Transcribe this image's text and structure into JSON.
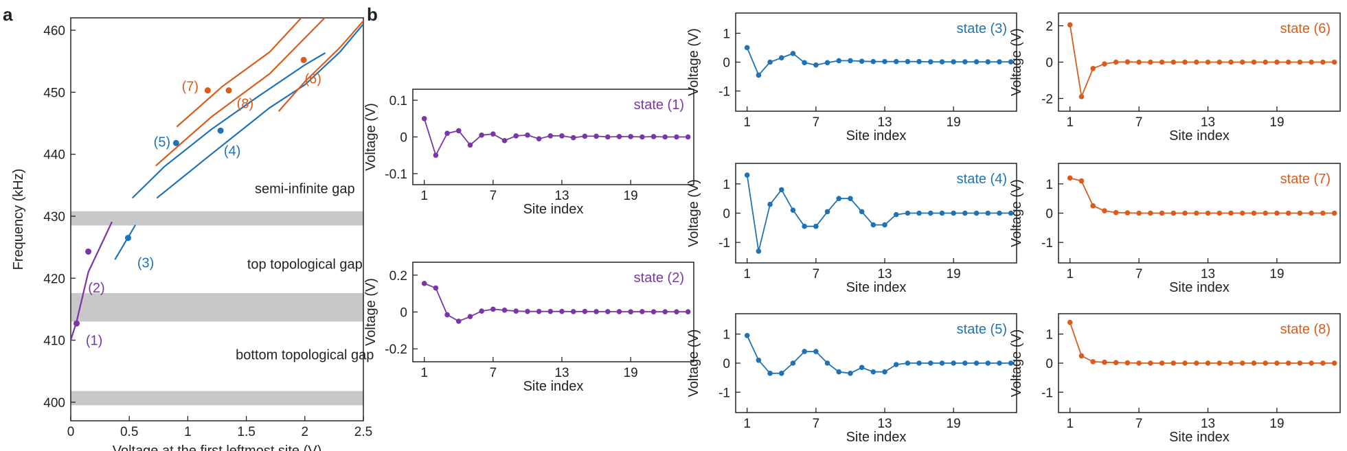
{
  "colors": {
    "purple": "#7a35a6",
    "blue": "#1f73b5",
    "orange": "#d95c1c",
    "gap": "#c8c8c8",
    "axis": "#222222"
  },
  "panel_a": {
    "letter": "a"
  },
  "panel_b": {
    "letter": "b"
  },
  "chart_data": [
    {
      "id": "a",
      "type": "line",
      "xlabel": "Voltage at the first leftmost site (V)",
      "ylabel": "Frequency (kHz)",
      "xlim": [
        0,
        2.5
      ],
      "ylim": [
        397,
        462
      ],
      "xticks": [
        "0",
        "0.5",
        "1",
        "1.5",
        "2",
        "2.5"
      ],
      "xtick_values": [
        0,
        0.5,
        1,
        1.5,
        2,
        2.5
      ],
      "yticks": [
        "400",
        "410",
        "420",
        "430",
        "440",
        "450",
        "460"
      ],
      "ytick_values": [
        400,
        410,
        420,
        430,
        440,
        450,
        460
      ],
      "gaps": [
        [
          399.5,
          401.8
        ],
        [
          413,
          417.6
        ],
        [
          428.5,
          430.8
        ]
      ],
      "gap_labels": [
        {
          "text": "semi-infinite gap",
          "x": 2.0,
          "y": 434.5
        },
        {
          "text": "top topological gap",
          "x": 2.0,
          "y": 422.3
        },
        {
          "text": "bottom topological gap",
          "x": 2.0,
          "y": 407.7
        }
      ],
      "series": [
        {
          "color": "purple",
          "points": [
            [
              0,
              410
            ],
            [
              0.05,
              413
            ],
            [
              0.15,
              421
            ],
            [
              0.35,
              429
            ]
          ]
        },
        {
          "color": "blue",
          "points": [
            [
              0.38,
              423.1
            ],
            [
              0.55,
              428.5
            ]
          ]
        },
        {
          "color": "blue",
          "points": [
            [
              0.53,
              433
            ],
            [
              0.8,
              438
            ],
            [
              1.2,
              444
            ],
            [
              1.6,
              449.3
            ],
            [
              2.0,
              454.4
            ],
            [
              2.17,
              456.3
            ]
          ]
        },
        {
          "color": "blue",
          "points": [
            [
              0.74,
              433
            ],
            [
              1.2,
              440
            ],
            [
              1.7,
              447.5
            ],
            [
              2.0,
              451.2
            ],
            [
              2.3,
              456.5
            ],
            [
              2.5,
              461
            ]
          ]
        },
        {
          "color": "orange",
          "points": [
            [
              0.91,
              444.5
            ],
            [
              1.3,
              451
            ],
            [
              1.7,
              456.5
            ],
            [
              1.97,
              462
            ]
          ]
        },
        {
          "color": "orange",
          "points": [
            [
              0.73,
              438.2
            ],
            [
              1.2,
              446
            ],
            [
              1.7,
              453
            ],
            [
              2.17,
              462
            ]
          ]
        },
        {
          "color": "orange",
          "points": [
            [
              1.78,
              447
            ],
            [
              2.0,
              451.7
            ],
            [
              2.3,
              457.2
            ],
            [
              2.5,
              461.5
            ]
          ]
        }
      ],
      "markers": [
        {
          "label": "(1)",
          "color": "purple",
          "x": 0.05,
          "y": 412.7,
          "lx": 0.2,
          "ly": 410
        },
        {
          "label": "(2)",
          "color": "purple",
          "x": 0.15,
          "y": 424.3,
          "lx": 0.22,
          "ly": 418.5
        },
        {
          "label": "(3)",
          "color": "blue",
          "x": 0.49,
          "y": 426.5,
          "lx": 0.64,
          "ly": 422.5
        },
        {
          "label": "(4)",
          "color": "blue",
          "x": 1.28,
          "y": 443.8,
          "lx": 1.38,
          "ly": 440.6
        },
        {
          "label": "(5)",
          "color": "blue",
          "x": 0.9,
          "y": 441.8,
          "lx": 0.78,
          "ly": 442
        },
        {
          "label": "(6)",
          "color": "orange",
          "x": 1.99,
          "y": 455.2,
          "lx": 2.07,
          "ly": 452.2
        },
        {
          "label": "(7)",
          "color": "orange",
          "x": 1.17,
          "y": 450.3,
          "lx": 1.02,
          "ly": 451
        },
        {
          "label": "(8)",
          "color": "orange",
          "x": 1.35,
          "y": 450.3,
          "lx": 1.49,
          "ly": 448.2
        }
      ]
    },
    {
      "id": "s1",
      "type": "line",
      "state": "state (1)",
      "color": "purple",
      "xlabel": "Site index",
      "ylabel": "Voltage (V)",
      "xlim": [
        0,
        24.5
      ],
      "ylim": [
        -0.13,
        0.13
      ],
      "xticks": [
        "1",
        "7",
        "13",
        "19"
      ],
      "xtick_values": [
        1,
        7,
        13,
        19
      ],
      "yticks": [
        "-0.1",
        "0",
        "0.1"
      ],
      "ytick_values": [
        -0.1,
        0,
        0.1
      ],
      "y": [
        0.05,
        -0.05,
        0.01,
        0.017,
        -0.022,
        0.005,
        0.008,
        -0.01,
        0.003,
        0.005,
        -0.005,
        0.003,
        0.003,
        -0.002,
        0.002,
        0.002,
        0,
        0.001,
        0.001,
        0,
        0.001,
        0,
        0,
        0
      ]
    },
    {
      "id": "s2",
      "type": "line",
      "state": "state (2)",
      "color": "purple",
      "xlabel": "Site index",
      "ylabel": "Voltage (V)",
      "xlim": [
        0,
        24.5
      ],
      "ylim": [
        -0.27,
        0.27
      ],
      "xticks": [
        "1",
        "7",
        "13",
        "19"
      ],
      "xtick_values": [
        1,
        7,
        13,
        19
      ],
      "yticks": [
        "-0.2",
        "0",
        "0.2"
      ],
      "ytick_values": [
        -0.2,
        0,
        0.2
      ],
      "y": [
        0.155,
        0.13,
        -0.015,
        -0.05,
        -0.025,
        0.005,
        0.015,
        0.01,
        0.005,
        0.003,
        0.003,
        0.003,
        0.003,
        0.002,
        0.003,
        0.002,
        0.002,
        0.002,
        0.001,
        0.002,
        0.001,
        0.001,
        0.001,
        0.001
      ]
    },
    {
      "id": "s3",
      "type": "line",
      "state": "state (3)",
      "color": "blue",
      "xlabel": "Site index",
      "ylabel": "Voltage (V)",
      "xlim": [
        0,
        24.5
      ],
      "ylim": [
        -1.7,
        1.7
      ],
      "xticks": [
        "1",
        "7",
        "13",
        "19"
      ],
      "xtick_values": [
        1,
        7,
        13,
        19
      ],
      "yticks": [
        "-1",
        "0",
        "1"
      ],
      "ytick_values": [
        -1,
        0,
        1
      ],
      "y": [
        0.5,
        -0.45,
        0.0,
        0.15,
        0.3,
        -0.02,
        -0.1,
        -0.02,
        0.05,
        0.05,
        0.03,
        0.02,
        0.02,
        0.02,
        0.02,
        0.02,
        0.01,
        0.01,
        0.01,
        0.01,
        0.01,
        0.01,
        0.01,
        0.01
      ]
    },
    {
      "id": "s6",
      "type": "line",
      "state": "state (6)",
      "color": "orange",
      "xlabel": "Site index",
      "ylabel": "Voltage (V)",
      "xlim": [
        0,
        24.5
      ],
      "ylim": [
        -2.7,
        2.7
      ],
      "xticks": [
        "1",
        "7",
        "13",
        "19"
      ],
      "xtick_values": [
        1,
        7,
        13,
        19
      ],
      "yticks": [
        "-2",
        "0",
        "2"
      ],
      "ytick_values": [
        -2,
        0,
        2
      ],
      "y": [
        2.05,
        -1.9,
        -0.35,
        -0.1,
        0.0,
        0.01,
        0,
        0,
        0,
        0,
        0,
        0,
        0,
        0,
        0,
        0,
        0,
        0,
        0,
        0,
        0,
        0,
        0,
        0
      ]
    },
    {
      "id": "s4",
      "type": "line",
      "state": "state (4)",
      "color": "blue",
      "xlabel": "Site index",
      "ylabel": "Voltage (V)",
      "xlim": [
        0,
        24.5
      ],
      "ylim": [
        -1.7,
        1.7
      ],
      "xticks": [
        "1",
        "7",
        "13",
        "19"
      ],
      "xtick_values": [
        1,
        7,
        13,
        19
      ],
      "yticks": [
        "-1",
        "0",
        "1"
      ],
      "ytick_values": [
        -1,
        0,
        1
      ],
      "y": [
        1.3,
        -1.3,
        0.3,
        0.8,
        0.1,
        -0.45,
        -0.45,
        0.05,
        0.5,
        0.5,
        0.05,
        -0.4,
        -0.4,
        -0.05,
        0.0,
        0.0,
        0.0,
        0.0,
        0.0,
        0.0,
        0.0,
        0.0,
        0.0,
        0.0
      ]
    },
    {
      "id": "s7",
      "type": "line",
      "state": "state (7)",
      "color": "orange",
      "xlabel": "Site index",
      "ylabel": "Voltage (V)",
      "xlim": [
        0,
        24.5
      ],
      "ylim": [
        -1.7,
        1.7
      ],
      "xticks": [
        "1",
        "7",
        "13",
        "19"
      ],
      "xtick_values": [
        1,
        7,
        13,
        19
      ],
      "yticks": [
        "-1",
        "0",
        "1"
      ],
      "ytick_values": [
        -1,
        0,
        1
      ],
      "y": [
        1.2,
        1.1,
        0.25,
        0.08,
        0.02,
        0.01,
        0,
        0,
        0,
        0,
        0,
        0,
        0,
        0,
        0,
        0,
        0,
        0,
        0,
        0,
        0,
        0,
        0,
        0
      ]
    },
    {
      "id": "s5",
      "type": "line",
      "state": "state (5)",
      "color": "blue",
      "xlabel": "Site index",
      "ylabel": "Voltage (V)",
      "xlim": [
        0,
        24.5
      ],
      "ylim": [
        -1.7,
        1.7
      ],
      "xticks": [
        "1",
        "7",
        "13",
        "19"
      ],
      "xtick_values": [
        1,
        7,
        13,
        19
      ],
      "yticks": [
        "-1",
        "0",
        "1"
      ],
      "ytick_values": [
        -1,
        0,
        1
      ],
      "y": [
        0.95,
        0.1,
        -0.35,
        -0.35,
        0.0,
        0.4,
        0.4,
        0.0,
        -0.3,
        -0.35,
        -0.15,
        -0.3,
        -0.3,
        -0.05,
        0.0,
        0.0,
        0.0,
        0.0,
        0.0,
        0.0,
        0.0,
        0.0,
        0.0,
        0.0
      ]
    },
    {
      "id": "s8",
      "type": "line",
      "state": "state (8)",
      "color": "orange",
      "xlabel": "Site index",
      "ylabel": "Voltage (V)",
      "xlim": [
        0,
        24.5
      ],
      "ylim": [
        -1.7,
        1.7
      ],
      "xticks": [
        "1",
        "7",
        "13",
        "19"
      ],
      "xtick_values": [
        1,
        7,
        13,
        19
      ],
      "yticks": [
        "-1",
        "0",
        "1"
      ],
      "ytick_values": [
        -1,
        0,
        1
      ],
      "y": [
        1.4,
        0.25,
        0.05,
        0.03,
        0.02,
        0.01,
        0,
        0,
        0,
        0,
        0,
        0,
        0,
        0,
        0,
        0,
        0,
        0,
        0,
        0,
        0,
        0,
        0,
        0
      ]
    }
  ]
}
